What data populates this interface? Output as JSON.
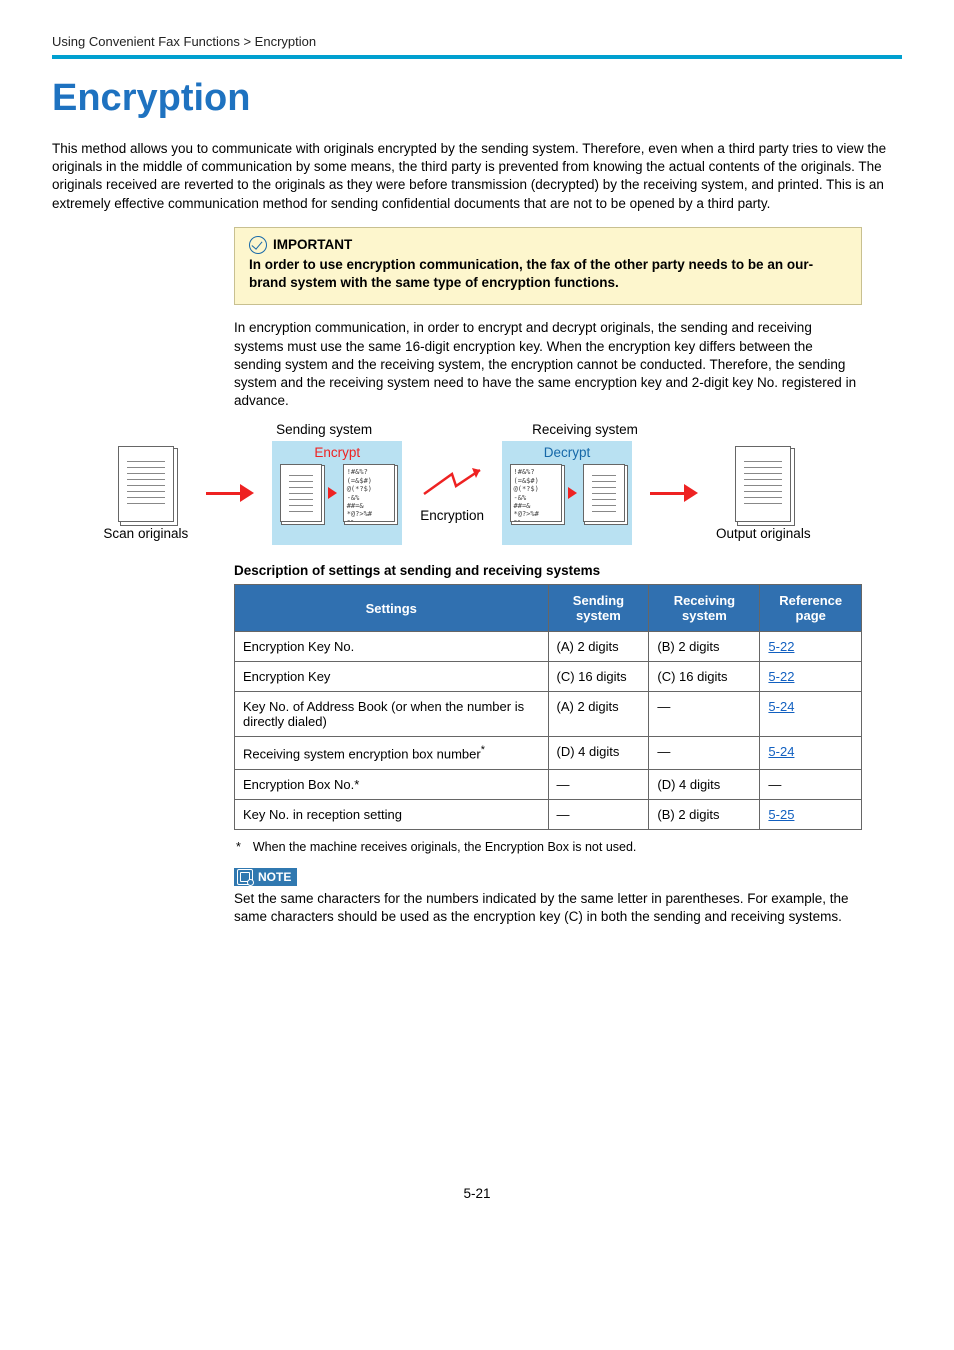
{
  "breadcrumb": "Using Convenient Fax Functions > Encryption",
  "title": "Encryption",
  "intro": "This method allows you to communicate with originals encrypted by the sending system. Therefore, even when a third party tries to view the originals in the middle of communication by some means, the third party is prevented from knowing the actual contents of the originals. The originals received are reverted to the originals as they were before transmission (decrypted) by the receiving system, and printed. This is an extremely effective communication method for sending confidential documents that are not to be opened by a third party.",
  "important": {
    "label": "IMPORTANT",
    "text": "In order to use encryption communication, the fax of the other party needs to be an our-brand system with the same type of encryption functions."
  },
  "para2": "In encryption communication, in order to encrypt and decrypt originals, the sending and receiving systems must use the same 16-digit encryption key. When the encryption key differs between the sending system and the receiving system, the encryption cannot be conducted. Therefore, the sending system and the receiving system need to have the same encryption key and 2-digit key No. registered in advance.",
  "diagram": {
    "sending_label": "Sending system",
    "receiving_label": "Receiving system",
    "encrypt_label": "Encrypt",
    "decrypt_label": "Decrypt",
    "cipher_sample": "!#&%?\n(=&$#)\n@(*?$)\n-&%\n##=&\n*@?>%#\n&%=",
    "scan_label": "Scan originals",
    "encryption_label": "Encryption",
    "output_label": "Output originals"
  },
  "table_title": "Description of settings at sending and receiving systems",
  "table": {
    "headers": [
      "Settings",
      "Sending system",
      "Receiving system",
      "Reference page"
    ],
    "rows": [
      {
        "s": "Encryption Key No.",
        "send": "(A) 2 digits",
        "recv": "(B) 2 digits",
        "ref": "5-22"
      },
      {
        "s": "Encryption Key",
        "send": "(C) 16 digits",
        "recv": "(C) 16 digits",
        "ref": "5-22"
      },
      {
        "s": "Key No. of Address Book (or when the number is directly dialed)",
        "send": "(A) 2 digits",
        "recv": "—",
        "ref": "5-24"
      },
      {
        "s": "Receiving system encryption box number*",
        "send": "(D) 4 digits",
        "recv": "—",
        "ref": "5-24",
        "sup": "*"
      },
      {
        "s": "Encryption Box No.*",
        "send": "—",
        "recv": "(D) 4 digits",
        "ref": "—"
      },
      {
        "s": "Key No. in reception setting",
        "send": "—",
        "recv": "(B) 2 digits",
        "ref": "5-25"
      }
    ]
  },
  "footnote": "When the machine receives originals, the Encryption Box is not used.",
  "note": {
    "label": "NOTE",
    "text": "Set the same characters for the numbers indicated by the same letter in parentheses. For example, the same characters should be used as the encryption key (C) in both the sending and receiving systems."
  },
  "page_number": "5-21",
  "colors": {
    "title": "#1e72c0",
    "rule": "#00a0d0",
    "table_header_bg": "#3070b0",
    "callout_bg": "#fdf6cd",
    "bluebox_bg": "#b9e1f2",
    "red": "#e22",
    "link": "#1260c0"
  }
}
